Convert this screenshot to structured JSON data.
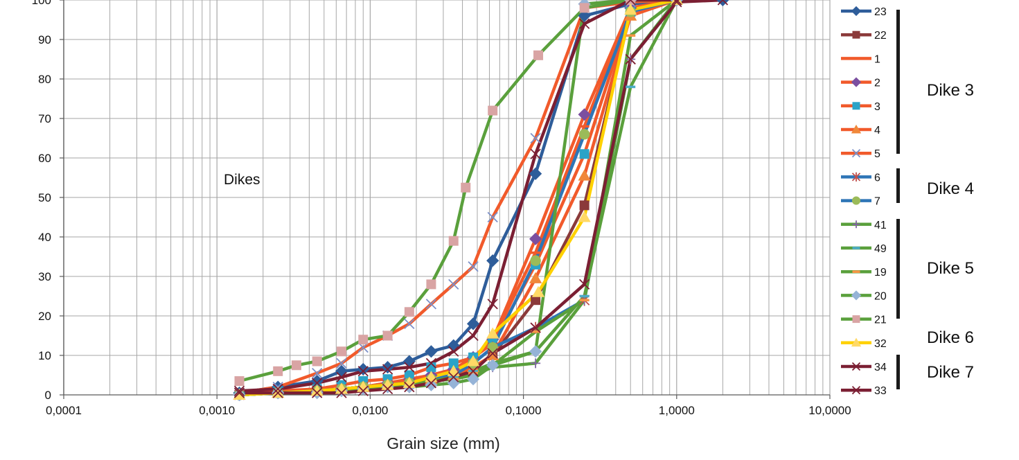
{
  "chart_data": {
    "type": "line",
    "title": "",
    "xlabel": "Grain size (mm)",
    "ylabel": "",
    "x_scale": "log",
    "xlim": [
      0.0001,
      10
    ],
    "ylim": [
      0,
      100
    ],
    "grid": true,
    "legend_position": "right",
    "x_tick_labels": [
      "0,0001",
      "0,0010",
      "0,0100",
      "0,1000",
      "1,0000",
      "10,0000"
    ],
    "x_tick_values": [
      0.0001,
      0.001,
      0.01,
      0.1,
      1,
      10
    ],
    "y_tick_labels": [
      "0",
      "10",
      "20",
      "30",
      "40",
      "50",
      "60",
      "70",
      "80",
      "90",
      "100"
    ],
    "y_tick_values": [
      0,
      10,
      20,
      30,
      40,
      50,
      60,
      70,
      80,
      90,
      100
    ],
    "annotations": [
      {
        "text": "Dikes",
        "x": 0.0015,
        "y": 55
      }
    ],
    "series": [
      {
        "name": "23",
        "color": "#2e5d9a",
        "marker": "diamond",
        "x": [
          0.0014,
          0.0025,
          0.0045,
          0.0065,
          0.009,
          0.013,
          0.018,
          0.025,
          0.035,
          0.047,
          0.063,
          0.12,
          0.25,
          0.5,
          1,
          2
        ],
        "y": [
          0.5,
          2,
          3.5,
          6,
          6.5,
          7,
          8.5,
          11,
          12.5,
          18,
          34,
          56,
          96,
          99,
          100,
          100
        ]
      },
      {
        "name": "22",
        "color": "#8b3a3a",
        "marker": "square",
        "x": [
          0.0014,
          0.0025,
          0.0045,
          0.0065,
          0.009,
          0.013,
          0.018,
          0.025,
          0.035,
          0.047,
          0.063,
          0.12,
          0.25,
          0.5,
          1
        ],
        "y": [
          0,
          0.5,
          1,
          1.5,
          2,
          2.5,
          3,
          4,
          5,
          7,
          10,
          24,
          48,
          97,
          100
        ]
      },
      {
        "name": "1",
        "color": "#f15a2b",
        "marker": "dash",
        "x": [
          0.0014,
          0.0025,
          0.0045,
          0.0065,
          0.009,
          0.013,
          0.018,
          0.025,
          0.035,
          0.047,
          0.063,
          0.12,
          0.25,
          0.5,
          1
        ],
        "y": [
          0,
          0.5,
          1,
          1.5,
          2,
          3,
          3.5,
          5,
          6.5,
          9,
          14,
          36,
          68,
          98,
          100
        ]
      },
      {
        "name": "2",
        "color": "#7b4fa0",
        "marker": "diamond",
        "x": [
          0.0014,
          0.0025,
          0.0045,
          0.0065,
          0.009,
          0.013,
          0.018,
          0.025,
          0.035,
          0.047,
          0.063,
          0.12,
          0.25,
          0.5,
          1
        ],
        "y": [
          0,
          0.5,
          1,
          1.5,
          2,
          3,
          4,
          5,
          6.5,
          9.5,
          14,
          39.5,
          71,
          98,
          100
        ]
      },
      {
        "name": "3",
        "color": "#2ba3c8",
        "marker": "square",
        "x": [
          0.0014,
          0.0025,
          0.0045,
          0.0065,
          0.009,
          0.013,
          0.018,
          0.025,
          0.035,
          0.047,
          0.063,
          0.12,
          0.25,
          0.5,
          1
        ],
        "y": [
          0,
          1,
          1.5,
          2.5,
          3.5,
          4,
          5,
          7,
          8,
          9.5,
          13,
          33,
          61,
          97,
          100
        ]
      },
      {
        "name": "4",
        "color": "#f0883a",
        "marker": "triangle",
        "x": [
          0.0014,
          0.0025,
          0.0045,
          0.0065,
          0.009,
          0.013,
          0.018,
          0.025,
          0.035,
          0.047,
          0.063,
          0.12,
          0.25,
          0.5,
          1
        ],
        "y": [
          0,
          0.5,
          1,
          1.5,
          2,
          2.5,
          3,
          4,
          5,
          7,
          10,
          29.5,
          55.5,
          96,
          100
        ]
      },
      {
        "name": "5",
        "color": "#7c90c8",
        "marker": "cross",
        "x": [
          0.0014,
          0.0025,
          0.0045,
          0.0065,
          0.009,
          0.013,
          0.018,
          0.025,
          0.035,
          0.047,
          0.063,
          0.12,
          0.25,
          0.5,
          1
        ],
        "y": [
          0.5,
          2,
          5.5,
          8,
          12,
          15,
          18,
          23,
          28,
          32.5,
          45,
          65,
          98,
          99.5,
          100
        ]
      },
      {
        "name": "6",
        "color": "#c0504d",
        "marker": "star",
        "x": [
          0.0014,
          0.0025,
          0.0045,
          0.0065,
          0.009,
          0.013,
          0.018,
          0.025,
          0.035,
          0.047,
          0.063,
          0.12,
          0.25,
          0.5,
          1
        ],
        "y": [
          0,
          0.5,
          1,
          1.5,
          2,
          2.5,
          3,
          3.5,
          5,
          8,
          12,
          17,
          24,
          85,
          100
        ]
      },
      {
        "name": "7",
        "color": "#9bbb59",
        "marker": "circle",
        "x": [
          0.0014,
          0.0025,
          0.0045,
          0.0065,
          0.009,
          0.013,
          0.018,
          0.025,
          0.035,
          0.047,
          0.063,
          0.12,
          0.25,
          0.5,
          1
        ],
        "y": [
          0,
          0.5,
          1,
          1.5,
          2,
          2.5,
          3,
          4,
          5,
          8,
          12,
          34,
          66,
          97,
          100
        ]
      },
      {
        "name": "41",
        "color": "#8064a2",
        "marker": "plus",
        "x": [
          0.0014,
          0.0025,
          0.0045,
          0.0065,
          0.009,
          0.013,
          0.018,
          0.025,
          0.035,
          0.047,
          0.063,
          0.12,
          0.25,
          0.5,
          1
        ],
        "y": [
          0,
          0.5,
          1,
          1.5,
          2,
          2.5,
          3,
          3.5,
          4,
          5,
          7,
          8,
          24,
          85,
          100
        ]
      },
      {
        "name": "49",
        "color": "#4bacc6",
        "marker": "dash",
        "x": [
          0.0014,
          0.0025,
          0.0045,
          0.0065,
          0.009,
          0.013,
          0.018,
          0.025,
          0.035,
          0.047,
          0.063,
          0.12,
          0.25,
          0.5,
          1
        ],
        "y": [
          0,
          0.5,
          1,
          1.5,
          2,
          2.5,
          3,
          3.5,
          4.5,
          6,
          8,
          11,
          25,
          78,
          100
        ]
      },
      {
        "name": "19",
        "color": "#f79646",
        "marker": "dash",
        "x": [
          0.0014,
          0.0025,
          0.0045,
          0.0065,
          0.009,
          0.013,
          0.018,
          0.025,
          0.035,
          0.047,
          0.063,
          0.12,
          0.25,
          0.5,
          1
        ],
        "y": [
          0,
          0.5,
          1,
          1.5,
          2,
          2.5,
          3,
          3.5,
          4,
          5.5,
          7.5,
          16,
          24,
          91,
          100
        ]
      },
      {
        "name": "20",
        "color": "#95b3d7",
        "marker": "diamond",
        "x": [
          0.0014,
          0.0025,
          0.0045,
          0.0065,
          0.009,
          0.013,
          0.018,
          0.025,
          0.035,
          0.047,
          0.063,
          0.12,
          0.25,
          0.5,
          1
        ],
        "y": [
          0,
          0.5,
          0.5,
          1,
          1.5,
          2,
          2,
          2.5,
          3,
          4,
          7.5,
          11,
          99,
          100,
          100
        ]
      },
      {
        "name": "21",
        "color": "#d9a4a4",
        "marker": "square",
        "x": [
          0.0014,
          0.0025,
          0.0033,
          0.0045,
          0.0065,
          0.009,
          0.013,
          0.018,
          0.025,
          0.035,
          0.042,
          0.063,
          0.125,
          0.25,
          0.5
        ],
        "y": [
          3.5,
          6,
          7.5,
          8.5,
          11,
          14,
          15,
          21,
          28,
          39,
          52.5,
          72,
          86,
          98,
          100
        ]
      },
      {
        "name": "32",
        "color": "#ffd966",
        "marker": "triangle",
        "x": [
          0.0014,
          0.0025,
          0.0045,
          0.0065,
          0.009,
          0.013,
          0.018,
          0.025,
          0.035,
          0.047,
          0.063,
          0.125,
          0.25,
          0.5,
          1
        ],
        "y": [
          0,
          0.5,
          1,
          1.5,
          2,
          2.5,
          3,
          4.5,
          6,
          8.5,
          15.5,
          26,
          45,
          97.5,
          100
        ]
      },
      {
        "name": "34",
        "color": "#7b1f33",
        "marker": "cross",
        "x": [
          0.0014,
          0.0025,
          0.0045,
          0.0065,
          0.009,
          0.013,
          0.018,
          0.025,
          0.035,
          0.047,
          0.063,
          0.12,
          0.25,
          0.5,
          1,
          2
        ],
        "y": [
          0.5,
          0.5,
          0.5,
          0.5,
          1,
          1.5,
          2,
          3,
          4.5,
          6,
          10.5,
          17,
          28,
          85,
          99.5,
          100
        ]
      },
      {
        "name": "33",
        "color": "#7b1f33",
        "marker": "cross",
        "x": [
          0.0014,
          0.0025,
          0.0045,
          0.0065,
          0.009,
          0.013,
          0.018,
          0.025,
          0.035,
          0.047,
          0.063,
          0.12,
          0.25,
          0.5,
          1
        ],
        "y": [
          1,
          1.5,
          3,
          4.5,
          6,
          6.5,
          7,
          8,
          11,
          15,
          23,
          61,
          94,
          100,
          100
        ]
      }
    ],
    "legend_groups": [
      {
        "label": "Dike 3",
        "series": [
          "23",
          "22",
          "1",
          "2",
          "3",
          "4",
          "5"
        ]
      },
      {
        "label": "Dike 4",
        "series": [
          "6",
          "7"
        ]
      },
      {
        "label": "Dike 5",
        "series": [
          "41",
          "49",
          "19",
          "20",
          "21"
        ]
      },
      {
        "label": "Dike 6",
        "series": [
          "32"
        ]
      },
      {
        "label": "Dike 7",
        "series": [
          "34",
          "33"
        ]
      }
    ]
  },
  "style": {
    "grid_color": "#a6a6a6",
    "axis_color": "#595959",
    "background": "#ffffff",
    "line_palette_note_colors": [
      "#2e5d9a",
      "#8b3a3a",
      "#f15a2b",
      "#7b4fa0",
      "#2ba3c8",
      "#f0883a",
      "#5aa03c",
      "#7b1f33",
      "#ffd100"
    ]
  }
}
